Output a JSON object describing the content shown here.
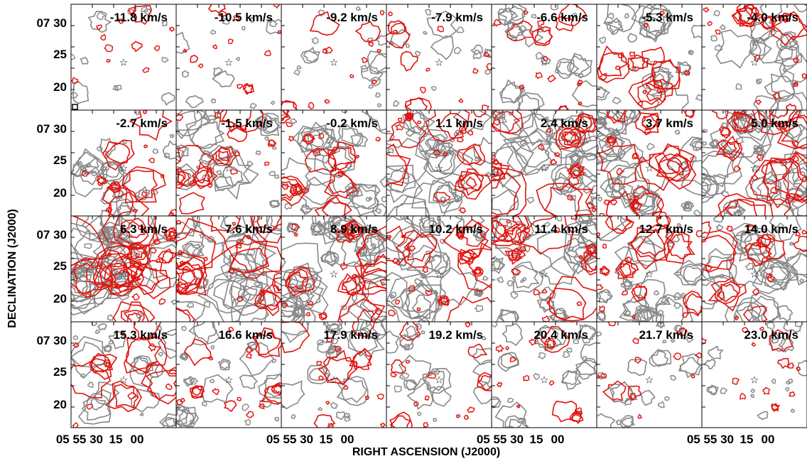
{
  "panels": [
    {
      "label": "-11.8 km/s"
    },
    {
      "label": "-10.5 km/s"
    },
    {
      "label": "-9.2 km/s"
    },
    {
      "label": "-7.9 km/s"
    },
    {
      "label": "-6.6 km/s"
    },
    {
      "label": "-5.3 km/s"
    },
    {
      "label": "-4.0 km/s"
    },
    {
      "label": "-2.7 km/s"
    },
    {
      "label": "-1.5 km/s"
    },
    {
      "label": "-0.2 km/s"
    },
    {
      "label": "1.1 km/s"
    },
    {
      "label": "2.4 km/s"
    },
    {
      "label": "3.7 km/s"
    },
    {
      "label": "5.0 km/s"
    },
    {
      "label": "6.3 km/s"
    },
    {
      "label": "7.6 km/s"
    },
    {
      "label": "8.9 km/s"
    },
    {
      "label": "10.2 km/s"
    },
    {
      "label": "11.4 km/s"
    },
    {
      "label": "12.7 km/s"
    },
    {
      "label": "14.0 km/s"
    },
    {
      "label": "15.3 km/s"
    },
    {
      "label": "16.6 km/s"
    },
    {
      "label": "17.9 km/s"
    },
    {
      "label": "19.2 km/s"
    },
    {
      "label": "20.4 km/s"
    },
    {
      "label": "21.7 km/s"
    },
    {
      "label": "23.0 km/s"
    }
  ],
  "axes": {
    "ylabel": "DECLINATION (J2000)",
    "xlabel": "RIGHT ASCENSION (J2000)",
    "yticks": [
      "07 30",
      "25",
      "20"
    ],
    "xticks": [
      "05 55 30",
      "15",
      "00"
    ]
  }
}
